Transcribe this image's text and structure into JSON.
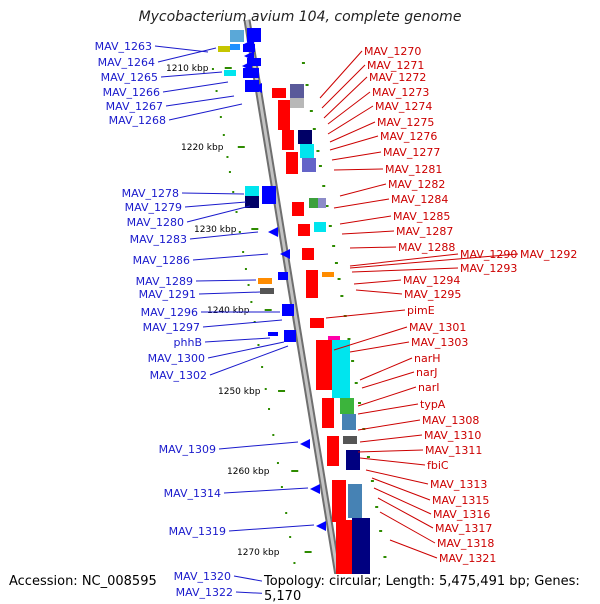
{
  "title": "Mycobacterium avium 104, complete genome",
  "footer": {
    "accession": "Accession: NC_008595",
    "summary": "Topology: circular; Length: 5,475,491 bp; Genes: 5,170"
  },
  "colors": {
    "left_label": "#1a1acc",
    "right_label": "#cc0000",
    "backbone": "#9a9a9a",
    "forward_gene": "#ff0000",
    "reverse_gene": "#0000ff",
    "tick": "#2e8b00"
  },
  "scale_labels": [
    "1210 kbp",
    "1220 kbp",
    "1230 kbp",
    "1240 kbp",
    "1250 kbp",
    "1260 kbp",
    "1270 kbp"
  ],
  "left_genes": [
    "MAV_1263",
    "MAV_1264",
    "MAV_1265",
    "MAV_1266",
    "MAV_1267",
    "MAV_1268",
    "MAV_1278",
    "MAV_1279",
    "MAV_1280",
    "MAV_1283",
    "MAV_1286",
    "MAV_1289",
    "MAV_1291",
    "MAV_1296",
    "MAV_1297",
    "phhB",
    "MAV_1300",
    "MAV_1302",
    "MAV_1309",
    "MAV_1314",
    "MAV_1319",
    "MAV_1320",
    "MAV_1322"
  ],
  "right_genes": [
    "MAV_1270",
    "MAV_1271",
    "MAV_1272",
    "MAV_1273",
    "MAV_1274",
    "MAV_1275",
    "MAV_1276",
    "MAV_1277",
    "MAV_1281",
    "MAV_1282",
    "MAV_1284",
    "MAV_1285",
    "MAV_1287",
    "MAV_1288",
    "MAV_1290",
    "MAV_1292",
    "MAV_1293",
    "MAV_1294",
    "MAV_1295",
    "pimE",
    "MAV_1301",
    "MAV_1303",
    "narH",
    "narJ",
    "narI",
    "typA",
    "MAV_1308",
    "MAV_1310",
    "MAV_1311",
    "fbiC",
    "MAV_1313",
    "MAV_1315",
    "MAV_1316",
    "MAV_1317",
    "MAV_1318",
    "MAV_1321"
  ]
}
